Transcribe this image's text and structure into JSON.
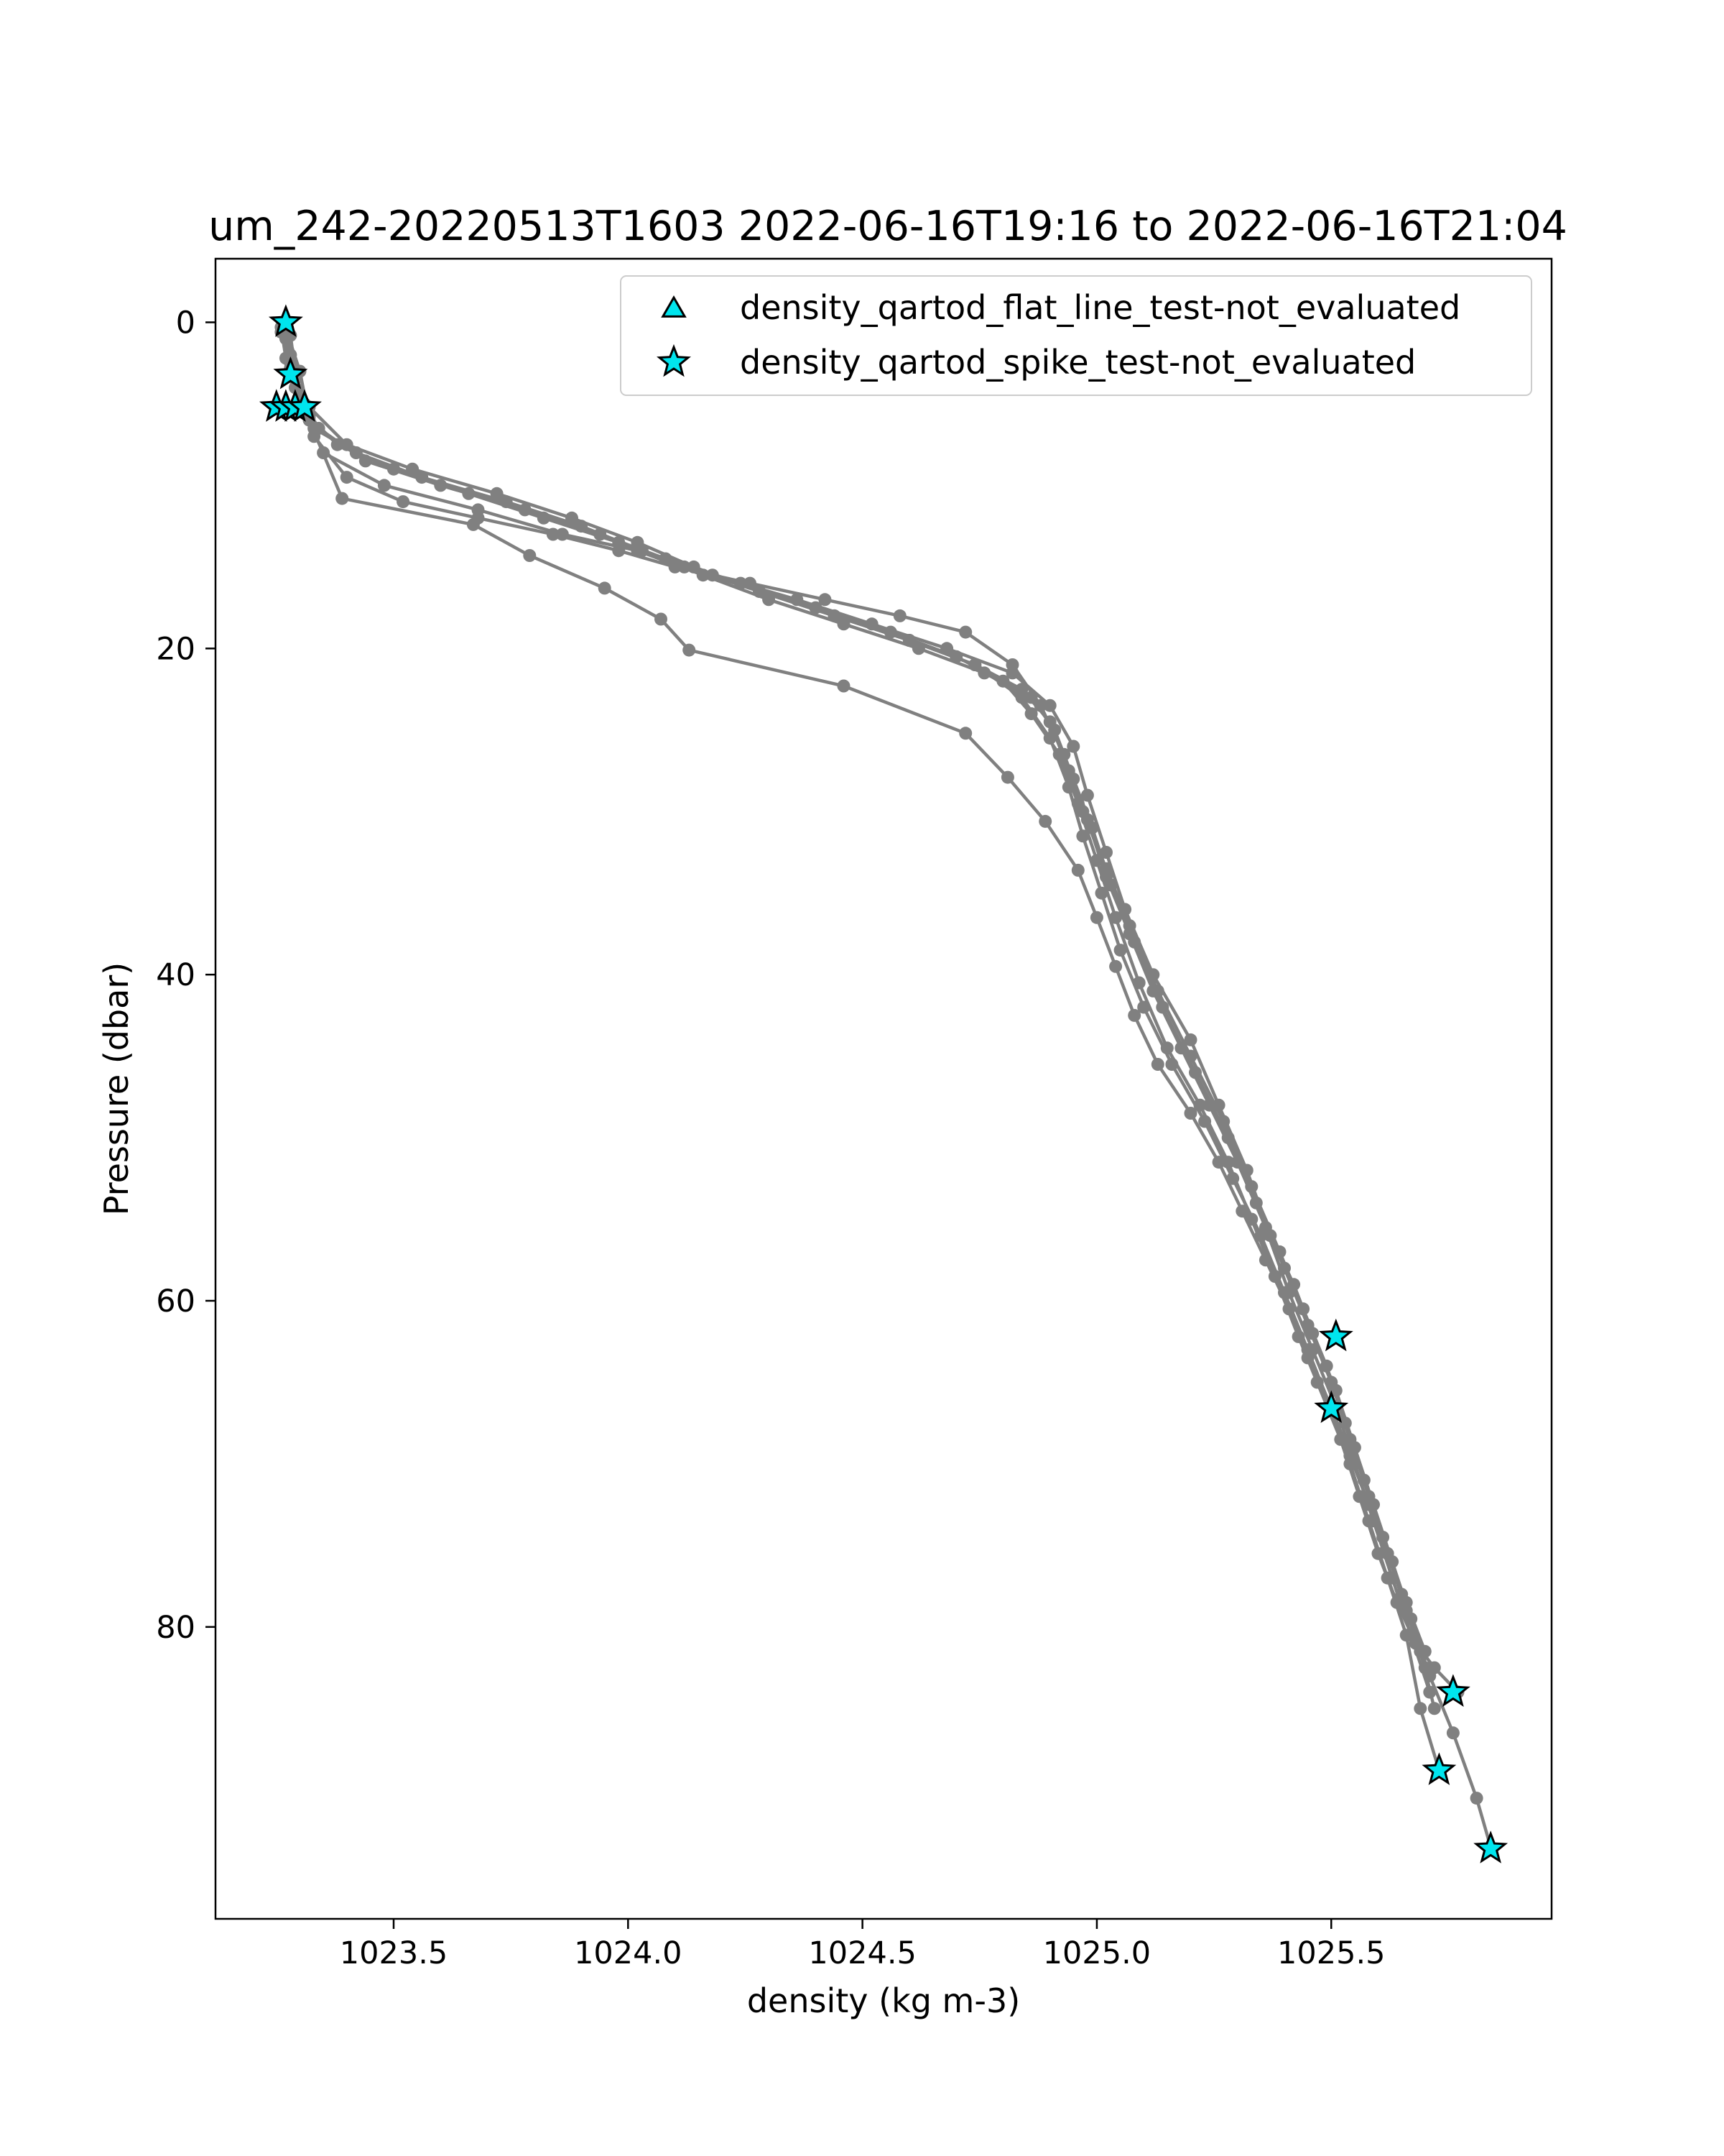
{
  "chart_data": {
    "type": "scatter",
    "title": "um_242-20220513T1603 2022-06-16T19:16 to 2022-06-16T21:04",
    "xlabel": "density (kg m-3)",
    "ylabel": "Pressure (dbar)",
    "xlim": [
      1023.12,
      1025.97
    ],
    "ylim": [
      97.9,
      -3.9
    ],
    "y_inverted": true,
    "grid": false,
    "legend_position": "top-right",
    "x_ticks": [
      {
        "value": 1023.5,
        "label": "1023.5"
      },
      {
        "value": 1024.0,
        "label": "1024.0"
      },
      {
        "value": 1024.5,
        "label": "1024.5"
      },
      {
        "value": 1025.0,
        "label": "1025.0"
      },
      {
        "value": 1025.5,
        "label": "1025.5"
      }
    ],
    "y_ticks": [
      {
        "value": 0,
        "label": "0"
      },
      {
        "value": 20,
        "label": "20"
      },
      {
        "value": 40,
        "label": "40"
      },
      {
        "value": 60,
        "label": "60"
      },
      {
        "value": 80,
        "label": "80"
      }
    ],
    "profile_color": "#808080",
    "marker_face_color": "#00e5ee",
    "marker_edge_color": "#000000",
    "profiles": [
      {
        "x": [
          1023.27,
          1023.28,
          1023.29,
          1023.3,
          1023.33,
          1023.42,
          1023.56,
          1023.74,
          1023.9,
          1024.03,
          1024.18,
          1024.36,
          1024.52,
          1024.68,
          1024.82,
          1024.9,
          1024.95,
          1024.98,
          1025.02,
          1025.06,
          1025.12,
          1025.2,
          1025.26,
          1025.32,
          1025.37,
          1025.42,
          1025.46,
          1025.51,
          1025.55,
          1025.59,
          1025.63,
          1025.67,
          1025.71,
          1025.76,
          1025.81,
          1025.84
        ],
        "y": [
          0.0,
          2.0,
          3.5,
          5.0,
          6.5,
          8.0,
          9.5,
          11.0,
          12.5,
          14.0,
          15.5,
          17.0,
          18.5,
          20.0,
          21.5,
          23.5,
          26.0,
          29.0,
          32.5,
          36.0,
          40.0,
          44.0,
          48.0,
          52.0,
          56.0,
          59.0,
          62.0,
          65.5,
          69.0,
          72.5,
          76.0,
          79.5,
          83.0,
          86.5,
          90.5,
          93.5
        ]
      },
      {
        "x": [
          1023.27,
          1023.28,
          1023.3,
          1023.34,
          1023.44,
          1023.6,
          1023.78,
          1023.94,
          1024.08,
          1024.24,
          1024.4,
          1024.56,
          1024.7,
          1024.8,
          1024.86,
          1024.92,
          1024.96,
          1025.0,
          1025.04,
          1025.09,
          1025.15,
          1025.22,
          1025.28,
          1025.33,
          1025.38,
          1025.43,
          1025.47,
          1025.52,
          1025.56,
          1025.6,
          1025.64,
          1025.68,
          1025.72,
          1025.77
        ],
        "y": [
          0.5,
          2.5,
          4.5,
          6.5,
          8.5,
          10.0,
          11.5,
          13.0,
          14.5,
          16.0,
          17.5,
          19.0,
          20.5,
          22.0,
          24.0,
          26.5,
          29.5,
          33.0,
          36.5,
          40.5,
          44.5,
          48.0,
          51.5,
          55.0,
          58.5,
          62.2,
          65.0,
          68.5,
          72.0,
          75.5,
          78.5,
          81.0,
          82.5,
          84.0
        ]
      },
      {
        "x": [
          1023.26,
          1023.27,
          1023.29,
          1023.32,
          1023.38,
          1023.5,
          1023.66,
          1023.82,
          1023.98,
          1024.12,
          1024.28,
          1024.44,
          1024.6,
          1024.74,
          1024.84,
          1024.9,
          1024.94,
          1024.97,
          1025.01,
          1025.05,
          1025.1,
          1025.16,
          1025.23,
          1025.29,
          1025.35,
          1025.4,
          1025.45,
          1025.5,
          1025.54,
          1025.58,
          1025.62,
          1025.66,
          1025.69,
          1025.73
        ],
        "y": [
          0.3,
          2.2,
          4.0,
          5.8,
          7.5,
          9.0,
          10.5,
          12.0,
          13.5,
          15.0,
          16.5,
          18.0,
          19.5,
          21.0,
          23.0,
          25.5,
          28.5,
          31.5,
          35.0,
          38.5,
          42.0,
          45.5,
          49.0,
          52.5,
          56.0,
          59.5,
          63.0,
          66.6,
          70.0,
          73.5,
          77.0,
          80.5,
          85.0,
          88.8
        ]
      },
      {
        "x": [
          1023.28,
          1023.29,
          1023.31,
          1023.33,
          1023.4,
          1023.52,
          1023.68,
          1023.84,
          1023.98,
          1024.1,
          1024.26,
          1024.42,
          1024.58,
          1024.72,
          1024.82,
          1024.88,
          1024.93,
          1024.97,
          1025.02,
          1025.07,
          1025.13,
          1025.2,
          1025.27,
          1025.33,
          1025.39,
          1025.44,
          1025.49,
          1025.53,
          1025.57,
          1025.61,
          1025.65,
          1025.69,
          1025.72
        ],
        "y": [
          0.8,
          3.0,
          5.0,
          7.0,
          9.5,
          11.0,
          12.0,
          13.0,
          14.0,
          15.0,
          16.0,
          17.0,
          18.0,
          19.0,
          21.0,
          23.5,
          26.5,
          30.0,
          33.5,
          37.0,
          41.0,
          45.0,
          49.0,
          53.0,
          57.0,
          60.5,
          64.0,
          67.5,
          71.0,
          74.5,
          78.0,
          81.5,
          85.0
        ]
      },
      {
        "x": [
          1023.27,
          1023.29,
          1023.31,
          1023.35,
          1023.48,
          1023.68,
          1023.86,
          1024.02,
          1024.16,
          1024.3,
          1024.46,
          1024.62,
          1024.76,
          1024.86,
          1024.91,
          1024.95,
          1024.99,
          1025.03,
          1025.08,
          1025.14,
          1025.21,
          1025.28,
          1025.34,
          1025.4,
          1025.45,
          1025.5,
          1025.54,
          1025.58,
          1025.62,
          1025.66,
          1025.7
        ],
        "y": [
          1.0,
          3.2,
          5.5,
          8.0,
          10.0,
          11.5,
          13.0,
          14.0,
          15.5,
          17.0,
          18.5,
          20.0,
          21.5,
          23.0,
          25.0,
          28.0,
          31.0,
          34.5,
          38.0,
          42.0,
          46.0,
          50.0,
          54.0,
          58.0,
          61.5,
          65.0,
          68.5,
          72.0,
          75.5,
          79.0,
          82.5
        ]
      },
      {
        "x": [
          1023.26,
          1023.28,
          1023.32,
          1023.4,
          1023.54,
          1023.72,
          1023.88,
          1024.02,
          1024.14,
          1024.28,
          1024.44,
          1024.6,
          1024.74,
          1024.84,
          1024.9,
          1024.94,
          1024.98,
          1025.02,
          1025.07,
          1025.12,
          1025.18,
          1025.24,
          1025.3,
          1025.36,
          1025.41,
          1025.46,
          1025.51,
          1025.55,
          1025.59,
          1025.63,
          1025.67,
          1025.71
        ],
        "y": [
          0.6,
          2.8,
          5.2,
          7.5,
          9.0,
          10.5,
          12.0,
          13.5,
          15.0,
          16.5,
          18.0,
          19.5,
          21.0,
          22.5,
          24.5,
          27.5,
          30.5,
          34.0,
          37.5,
          41.0,
          44.5,
          48.0,
          51.5,
          55.5,
          59.5,
          63.0,
          66.5,
          70.0,
          73.5,
          77.0,
          80.5,
          84.0
        ]
      },
      {
        "x": [
          1023.27,
          1023.3,
          1023.32,
          1023.39,
          1023.67,
          1023.79,
          1023.95,
          1024.07,
          1024.13,
          1024.46,
          1024.72,
          1024.81,
          1024.89,
          1024.96,
          1025.0,
          1025.04,
          1025.08,
          1025.13,
          1025.2,
          1025.26,
          1025.31,
          1025.36,
          1025.41,
          1025.45,
          1025.5,
          1025.54,
          1025.58,
          1025.62,
          1025.66,
          1025.7
        ],
        "y": [
          0.4,
          3.0,
          6.0,
          10.8,
          12.4,
          14.3,
          16.3,
          18.2,
          20.1,
          22.3,
          25.2,
          27.9,
          30.6,
          33.6,
          36.5,
          39.5,
          42.5,
          45.5,
          48.5,
          51.5,
          54.5,
          57.5,
          60.5,
          63.5,
          66.5,
          69.5,
          72.5,
          75.5,
          78.5,
          81.5
        ]
      }
    ],
    "series": [
      {
        "name": "density_qartod_flat_line_test-not_evaluated",
        "marker": "triangle",
        "x": [],
        "y": []
      },
      {
        "name": "density_qartod_spike_test-not_evaluated",
        "marker": "star",
        "x": [
          1023.27,
          1023.28,
          1023.25,
          1023.27,
          1023.29,
          1023.31,
          1025.51,
          1025.5,
          1025.76,
          1025.73,
          1025.84
        ],
        "y": [
          0.0,
          3.2,
          5.2,
          5.2,
          5.2,
          5.2,
          62.2,
          66.6,
          84.0,
          88.8,
          93.6
        ]
      }
    ]
  }
}
